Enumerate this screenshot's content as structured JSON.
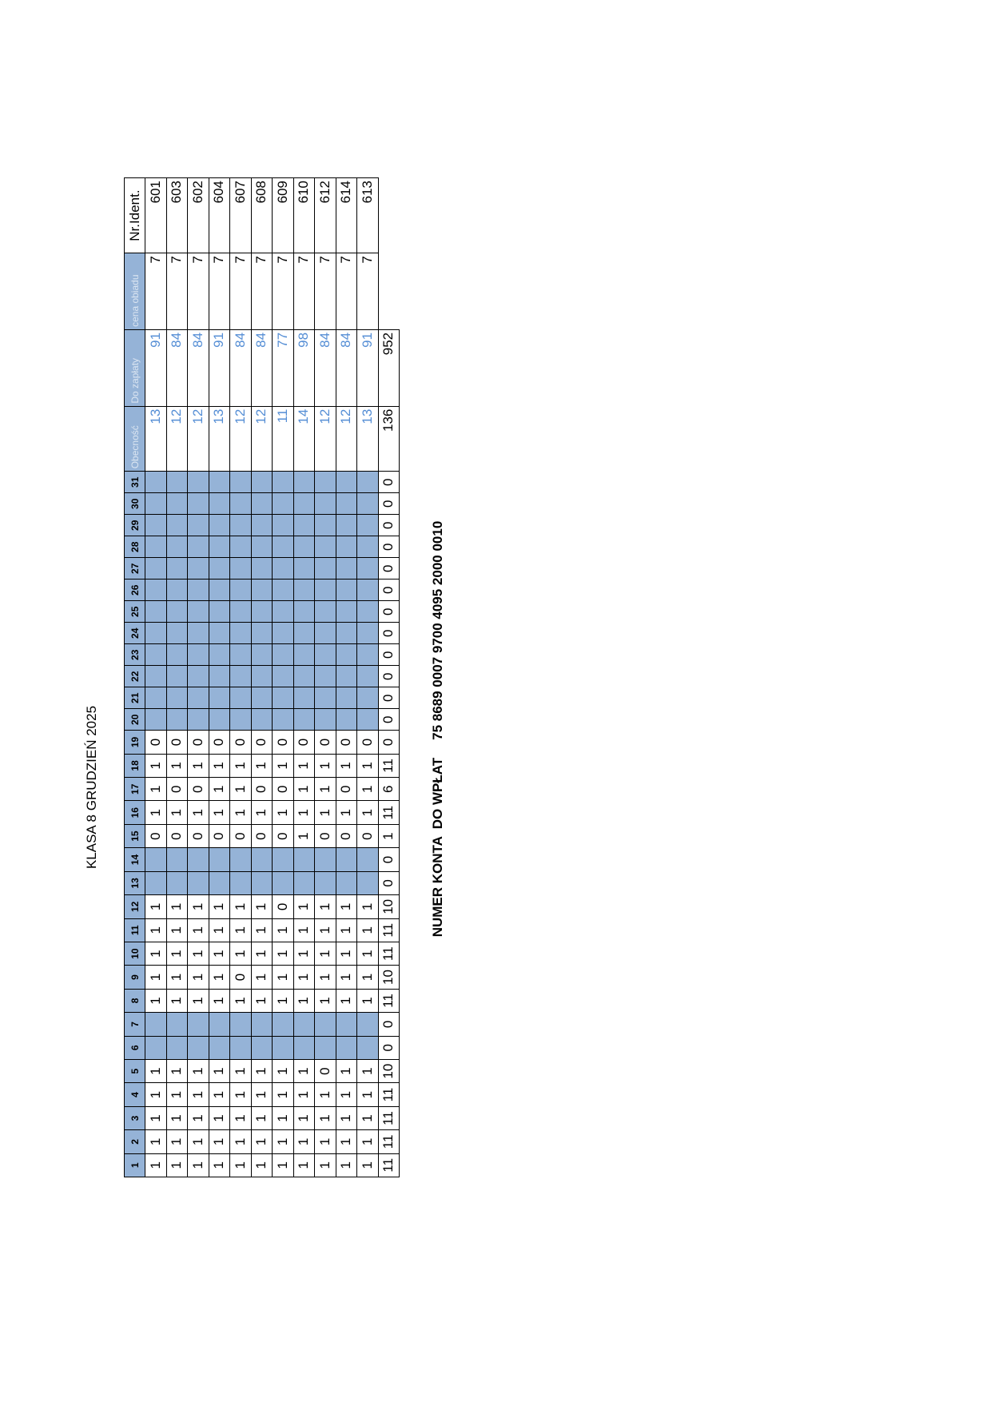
{
  "header": {
    "title": "KLASA 8 GRUDZIEŃ 2025"
  },
  "table": {
    "columns": [
      1,
      2,
      3,
      4,
      5,
      6,
      7,
      8,
      9,
      10,
      11,
      12,
      13,
      14,
      15,
      16,
      17,
      18,
      19,
      20,
      21,
      22,
      23,
      24,
      25,
      26,
      27,
      28,
      29,
      30,
      31,
      "Obecność",
      "Do zapłaty",
      "cena obiadu",
      "Nr.Ident."
    ],
    "rows": [
      [
        1,
        1,
        1,
        1,
        1,
        null,
        null,
        1,
        1,
        1,
        1,
        1,
        null,
        null,
        0,
        1,
        1,
        1,
        0,
        null,
        null,
        null,
        null,
        null,
        null,
        null,
        null,
        null,
        null,
        null,
        null,
        13,
        91,
        7,
        601
      ],
      [
        1,
        1,
        1,
        1,
        1,
        null,
        null,
        1,
        1,
        1,
        1,
        1,
        null,
        null,
        0,
        1,
        0,
        1,
        0,
        null,
        null,
        null,
        null,
        null,
        null,
        null,
        null,
        null,
        null,
        null,
        null,
        12,
        84,
        7,
        603
      ],
      [
        1,
        1,
        1,
        1,
        1,
        null,
        null,
        1,
        1,
        1,
        1,
        1,
        null,
        null,
        0,
        1,
        0,
        1,
        0,
        null,
        null,
        null,
        null,
        null,
        null,
        null,
        null,
        null,
        null,
        null,
        null,
        12,
        84,
        7,
        602
      ],
      [
        1,
        1,
        1,
        1,
        1,
        null,
        null,
        1,
        1,
        1,
        1,
        1,
        null,
        null,
        0,
        1,
        1,
        1,
        0,
        null,
        null,
        null,
        null,
        null,
        null,
        null,
        null,
        null,
        null,
        null,
        null,
        13,
        91,
        7,
        604
      ],
      [
        1,
        1,
        1,
        1,
        1,
        null,
        null,
        1,
        0,
        1,
        1,
        1,
        null,
        null,
        0,
        1,
        1,
        1,
        0,
        null,
        null,
        null,
        null,
        null,
        null,
        null,
        null,
        null,
        null,
        null,
        null,
        12,
        84,
        7,
        607
      ],
      [
        1,
        1,
        1,
        1,
        1,
        null,
        null,
        1,
        1,
        1,
        1,
        1,
        null,
        null,
        0,
        1,
        0,
        1,
        0,
        null,
        null,
        null,
        null,
        null,
        null,
        null,
        null,
        null,
        null,
        null,
        null,
        12,
        84,
        7,
        608
      ],
      [
        1,
        1,
        1,
        1,
        1,
        null,
        null,
        1,
        1,
        1,
        1,
        0,
        null,
        null,
        0,
        1,
        0,
        1,
        0,
        null,
        null,
        null,
        null,
        null,
        null,
        null,
        null,
        null,
        null,
        null,
        null,
        11,
        77,
        7,
        609
      ],
      [
        1,
        1,
        1,
        1,
        1,
        null,
        null,
        1,
        1,
        1,
        1,
        1,
        null,
        null,
        1,
        1,
        1,
        1,
        0,
        null,
        null,
        null,
        null,
        null,
        null,
        null,
        null,
        null,
        null,
        null,
        null,
        14,
        98,
        7,
        610
      ],
      [
        1,
        1,
        1,
        1,
        0,
        null,
        null,
        1,
        1,
        1,
        1,
        1,
        null,
        null,
        0,
        1,
        1,
        1,
        0,
        null,
        null,
        null,
        null,
        null,
        null,
        null,
        null,
        null,
        null,
        null,
        null,
        12,
        84,
        7,
        612
      ],
      [
        1,
        1,
        1,
        1,
        1,
        null,
        null,
        1,
        1,
        1,
        1,
        1,
        null,
        null,
        0,
        1,
        0,
        1,
        0,
        null,
        null,
        null,
        null,
        null,
        null,
        null,
        null,
        null,
        null,
        null,
        null,
        12,
        84,
        7,
        614
      ],
      [
        1,
        1,
        1,
        1,
        1,
        null,
        null,
        1,
        1,
        1,
        1,
        1,
        null,
        null,
        0,
        1,
        1,
        1,
        0,
        null,
        null,
        null,
        null,
        null,
        null,
        null,
        null,
        null,
        null,
        null,
        null,
        13,
        91,
        7,
        613
      ],
      [
        11,
        11,
        11,
        11,
        10,
        0,
        0,
        11,
        10,
        11,
        11,
        10,
        0,
        0,
        1,
        11,
        6,
        11,
        0,
        0,
        0,
        0,
        0,
        0,
        0,
        0,
        0,
        0,
        0,
        0,
        0,
        136,
        952,
        null,
        null
      ]
    ]
  },
  "footer": {
    "label": "NUMER KONTA  DO WPŁAT",
    "account": "75 8689 0007 9700 4095 2000 0010"
  }
}
